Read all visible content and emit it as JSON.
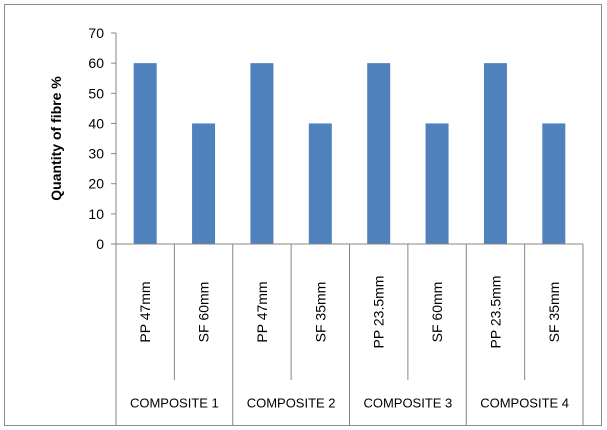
{
  "chart_data": {
    "type": "bar",
    "title": "",
    "xlabel": "",
    "ylabel": "Quantity of fibre %",
    "ylim": [
      0,
      70
    ],
    "yticks": [
      0,
      10,
      20,
      30,
      40,
      50,
      60,
      70
    ],
    "grid": false,
    "legend": "none",
    "bar_color": "#4f81bd",
    "categories": [
      "PP 47mm",
      "SF 60mm",
      "PP 47mm",
      "SF 35mm",
      "PP 23.5mm",
      "SF 60mm",
      "PP 23.5mm",
      "SF 35mm"
    ],
    "values": [
      60,
      40,
      60,
      40,
      60,
      40,
      60,
      40
    ],
    "groups": [
      {
        "label": "COMPOSITE 1",
        "span": 2
      },
      {
        "label": "COMPOSITE 2",
        "span": 2
      },
      {
        "label": "COMPOSITE 3",
        "span": 2
      },
      {
        "label": "COMPOSITE 4",
        "span": 2
      }
    ]
  }
}
